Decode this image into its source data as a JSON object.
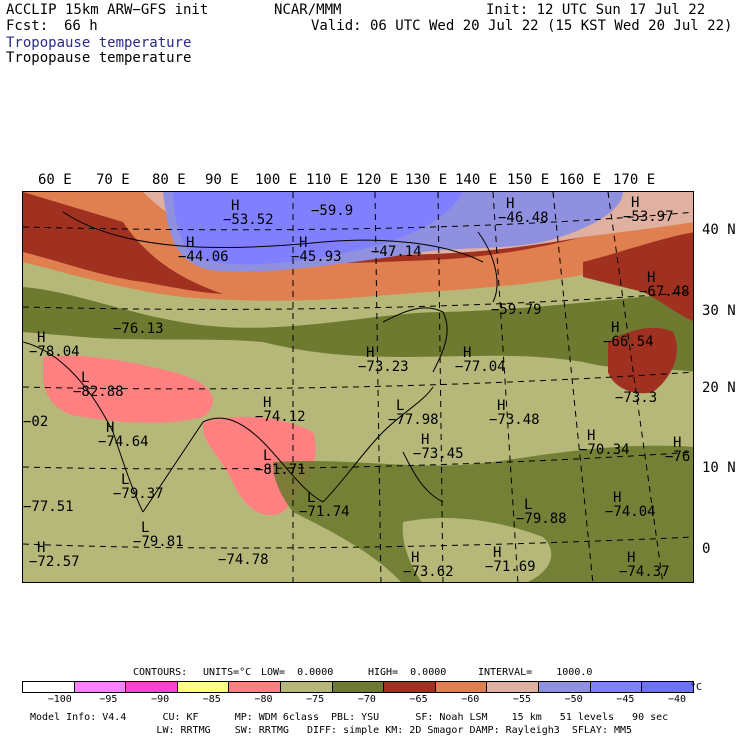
{
  "header": {
    "model": "ACCLIP 15km ARW−GFS init",
    "center": "NCAR/MMM",
    "init": "Init: 12 UTC Sun 17 Jul 22",
    "fcst_label": "Fcst:",
    "fcst_value": "66 h",
    "valid": "Valid: 06 UTC Wed 20 Jul 22 (15 KST Wed 20 Jul 22)",
    "title_blue": "Tropopause temperature",
    "title_black": "Tropopause temperature"
  },
  "longitudes": [
    "60 E",
    "70 E",
    "80 E",
    "90 E",
    "100 E",
    "110 E",
    "120 E",
    "130 E",
    "140 E",
    "150 E",
    "160 E",
    "170 E"
  ],
  "latitudes": [
    "40 N",
    "30 N",
    "20 N",
    "10 N",
    "0"
  ],
  "map_labels": [
    {
      "mark": "H",
      "value": "−53.52"
    },
    {
      "mark": "",
      "value": "−59.9"
    },
    {
      "mark": "H",
      "value": "−44.06"
    },
    {
      "mark": "H",
      "value": "−45.93"
    },
    {
      "mark": "",
      "value": "−47.14"
    },
    {
      "mark": "H",
      "value": "−46.48"
    },
    {
      "mark": "H",
      "value": "−53.97"
    },
    {
      "mark": "H",
      "value": "−67.48"
    },
    {
      "mark": "",
      "value": "−59.79"
    },
    {
      "mark": "",
      "value": "−76.13"
    },
    {
      "mark": "H",
      "value": "−78.04"
    },
    {
      "mark": "L",
      "value": "−82.88"
    },
    {
      "mark": "",
      "value": "−02"
    },
    {
      "mark": "H",
      "value": "−74.64"
    },
    {
      "mark": "H",
      "value": "−74.12"
    },
    {
      "mark": "H",
      "value": "−73.23"
    },
    {
      "mark": "H",
      "value": "−77.04"
    },
    {
      "mark": "L",
      "value": "−77.98"
    },
    {
      "mark": "H",
      "value": "−73.48"
    },
    {
      "mark": "H",
      "value": "−66.54"
    },
    {
      "mark": "",
      "value": "−73.3"
    },
    {
      "mark": "H",
      "value": "−70.34"
    },
    {
      "mark": "H",
      "value": "−76."
    },
    {
      "mark": "L",
      "value": "−81.71"
    },
    {
      "mark": "L",
      "value": "−79.37"
    },
    {
      "mark": "H",
      "value": "−73.45"
    },
    {
      "mark": "L",
      "value": "−71.74"
    },
    {
      "mark": "L",
      "value": "−79.88"
    },
    {
      "mark": "H",
      "value": "−74.04"
    },
    {
      "mark": "",
      "value": "−77.51"
    },
    {
      "mark": "H",
      "value": "−72.57"
    },
    {
      "mark": "L",
      "value": "−79.81"
    },
    {
      "mark": "",
      "value": "−74.78"
    },
    {
      "mark": "H",
      "value": "−73.62"
    },
    {
      "mark": "H",
      "value": "−71.69"
    },
    {
      "mark": "H",
      "value": "−74.37"
    }
  ],
  "contour_info": {
    "contours": "CONTOURS:",
    "units": "UNITS=°C",
    "low": "LOW=  0.0000",
    "high": "HIGH=  0.0000",
    "interval": "INTERVAL=    1000.0"
  },
  "colorbar": {
    "colors": [
      "#ffffff",
      "#ff80ff",
      "#ff40d0",
      "#ffff80",
      "#ff8080",
      "#b5b878",
      "#6e7a30",
      "#a03020",
      "#e08050",
      "#e0b0a0",
      "#9090e0",
      "#8080ff",
      "#7070ff"
    ],
    "ticks": [
      "−100",
      "−95",
      "−90",
      "−85",
      "−80",
      "−75",
      "−70",
      "−65",
      "−60",
      "−55",
      "−50",
      "−45",
      "−40"
    ],
    "unit": "°C"
  },
  "footer": {
    "line1": "Model Info: V4.4      CU: KF      MP: WDM 6class  PBL: YSU      SF: Noah LSM    15 km   51 levels   90 sec",
    "line2": "                     LW: RRTMG    SW: RRTMG   DIFF: simple KM: 2D Smagor DAMP: Rayleigh3  SFLAY: MM5"
  }
}
